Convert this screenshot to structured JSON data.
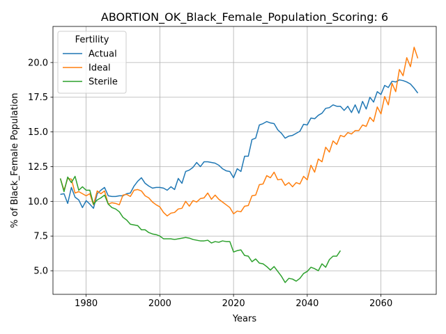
{
  "chart_data": {
    "type": "line",
    "title": "ABORTION_OK_Black_Female_Population_Scoring: 6",
    "xlabel": "Years",
    "ylabel": "% of Black_Female Population",
    "xlim": [
      1971,
      2075
    ],
    "ylim": [
      3.3,
      22.6
    ],
    "xticks": [
      1980,
      2000,
      2020,
      2040,
      2060
    ],
    "yticks": [
      5.0,
      7.5,
      10.0,
      12.5,
      15.0,
      17.5,
      20.0
    ],
    "grid": true,
    "legend": {
      "title": "Fertility",
      "placement": "upper-left"
    },
    "series": [
      {
        "name": "Actual",
        "color": "#1f77b4",
        "x": [
          1973,
          1974,
          1975,
          1976,
          1977,
          1978,
          1979,
          1980,
          1981,
          1982,
          1983,
          1984,
          1985,
          1986,
          1987,
          1988,
          1989,
          1990,
          1991,
          1992,
          1993,
          1994,
          1995,
          1996,
          1997,
          1998,
          1999,
          2000,
          2001,
          2002,
          2003,
          2004,
          2005,
          2006,
          2007,
          2008,
          2009,
          2010,
          2011,
          2012,
          2013,
          2014,
          2015,
          2016,
          2017,
          2018,
          2019,
          2020,
          2021,
          2022,
          2023,
          2024,
          2025,
          2026,
          2027,
          2028,
          2029,
          2030,
          2031,
          2032,
          2033,
          2034,
          2035,
          2036,
          2037,
          2038,
          2039,
          2040,
          2041,
          2042,
          2043,
          2044,
          2045,
          2046,
          2047,
          2048,
          2049,
          2050,
          2051,
          2052,
          2053,
          2054,
          2055,
          2056,
          2057,
          2058,
          2059,
          2060,
          2061,
          2062,
          2063,
          2064,
          2065,
          2066,
          2067,
          2068,
          2069,
          2070
        ],
        "y": [
          10.5,
          10.55,
          9.85,
          11.0,
          10.3,
          10.1,
          9.55,
          10.05,
          9.8,
          9.5,
          10.55,
          10.8,
          11.0,
          10.4,
          10.35,
          10.35,
          10.4,
          10.4,
          10.55,
          10.6,
          11.1,
          11.45,
          11.7,
          11.3,
          11.1,
          10.95,
          11.0,
          11.0,
          10.95,
          10.8,
          11.05,
          10.85,
          11.65,
          11.3,
          12.15,
          12.25,
          12.45,
          12.8,
          12.5,
          12.85,
          12.85,
          12.8,
          12.75,
          12.6,
          12.35,
          12.2,
          12.15,
          11.7,
          12.35,
          12.15,
          13.25,
          13.25,
          14.45,
          14.55,
          15.5,
          15.6,
          15.75,
          15.65,
          15.6,
          15.15,
          14.9,
          14.55,
          14.7,
          14.75,
          14.9,
          15.05,
          15.55,
          15.5,
          16.0,
          15.95,
          16.2,
          16.35,
          16.7,
          16.75,
          16.95,
          16.85,
          16.85,
          16.55,
          16.85,
          16.4,
          16.95,
          16.35,
          17.2,
          16.65,
          17.5,
          17.15,
          17.9,
          17.7,
          18.35,
          18.2,
          18.65,
          18.6,
          18.75,
          18.7,
          18.6,
          18.45,
          18.15,
          17.8
        ]
      },
      {
        "name": "Ideal",
        "color": "#ff7f0e",
        "x": [
          1973,
          1974,
          1975,
          1976,
          1977,
          1978,
          1979,
          1980,
          1981,
          1982,
          1983,
          1984,
          1985,
          1986,
          1987,
          1988,
          1989,
          1990,
          1991,
          1992,
          1993,
          1994,
          1995,
          1996,
          1997,
          1998,
          1999,
          2000,
          2001,
          2002,
          2003,
          2004,
          2005,
          2006,
          2007,
          2008,
          2009,
          2010,
          2011,
          2012,
          2013,
          2014,
          2015,
          2016,
          2017,
          2018,
          2019,
          2020,
          2021,
          2022,
          2023,
          2024,
          2025,
          2026,
          2027,
          2028,
          2029,
          2030,
          2031,
          2032,
          2033,
          2034,
          2035,
          2036,
          2037,
          2038,
          2039,
          2040,
          2041,
          2042,
          2043,
          2044,
          2045,
          2046,
          2047,
          2048,
          2049,
          2050,
          2051,
          2052,
          2053,
          2054,
          2055,
          2056,
          2057,
          2058,
          2059,
          2060,
          2061,
          2062,
          2063,
          2064,
          2065,
          2066,
          2067,
          2068,
          2069,
          2070
        ],
        "y": [
          11.65,
          10.8,
          11.65,
          11.6,
          10.6,
          10.7,
          10.55,
          10.4,
          10.55,
          9.75,
          10.75,
          10.55,
          10.75,
          9.8,
          9.9,
          9.85,
          9.75,
          10.45,
          10.5,
          10.35,
          10.8,
          10.85,
          10.75,
          10.4,
          10.25,
          9.95,
          9.75,
          9.6,
          9.2,
          8.95,
          9.15,
          9.2,
          9.45,
          9.5,
          10.0,
          9.65,
          10.05,
          9.95,
          10.2,
          10.25,
          10.6,
          10.15,
          10.45,
          10.15,
          9.95,
          9.75,
          9.55,
          9.1,
          9.3,
          9.25,
          9.65,
          9.7,
          10.4,
          10.45,
          11.2,
          11.25,
          11.85,
          11.7,
          12.1,
          11.55,
          11.6,
          11.15,
          11.35,
          11.05,
          11.35,
          11.25,
          11.8,
          11.55,
          12.6,
          12.1,
          13.05,
          12.85,
          13.9,
          13.55,
          14.35,
          14.1,
          14.75,
          14.65,
          14.95,
          14.85,
          15.1,
          15.1,
          15.5,
          15.4,
          16.05,
          15.75,
          16.8,
          16.3,
          17.55,
          16.95,
          18.5,
          17.9,
          19.5,
          19.05,
          20.35,
          19.7,
          21.1,
          20.3
        ]
      },
      {
        "name": "Sterile",
        "color": "#2ca02c",
        "x": [
          1973,
          1974,
          1975,
          1976,
          1977,
          1978,
          1979,
          1980,
          1981,
          1982,
          1983,
          1984,
          1985,
          1986,
          1987,
          1988,
          1989,
          1990,
          1991,
          1992,
          1993,
          1994,
          1995,
          1996,
          1997,
          1998,
          1999,
          2000,
          2001,
          2002,
          2003,
          2004,
          2005,
          2006,
          2007,
          2008,
          2009,
          2010,
          2011,
          2012,
          2013,
          2014,
          2015,
          2016,
          2017,
          2018,
          2019,
          2020,
          2021,
          2022,
          2023,
          2024,
          2025,
          2026,
          2027,
          2028,
          2029,
          2030,
          2031,
          2032,
          2033,
          2034,
          2035,
          2036,
          2037,
          2038,
          2039,
          2040,
          2041,
          2042,
          2043,
          2044,
          2045,
          2046,
          2047,
          2048,
          2049
        ],
        "y": [
          11.65,
          10.7,
          11.75,
          11.35,
          11.8,
          10.8,
          11.05,
          10.8,
          10.8,
          9.8,
          10.1,
          10.25,
          10.45,
          9.8,
          9.55,
          9.45,
          9.25,
          8.85,
          8.65,
          8.35,
          8.3,
          8.25,
          7.95,
          7.95,
          7.75,
          7.65,
          7.6,
          7.5,
          7.3,
          7.3,
          7.3,
          7.25,
          7.3,
          7.35,
          7.4,
          7.35,
          7.25,
          7.2,
          7.15,
          7.15,
          7.2,
          7.0,
          7.1,
          7.05,
          7.15,
          7.1,
          7.1,
          6.35,
          6.45,
          6.5,
          6.1,
          6.05,
          5.65,
          5.85,
          5.55,
          5.5,
          5.3,
          5.05,
          5.3,
          4.95,
          4.6,
          4.15,
          4.45,
          4.4,
          4.25,
          4.45,
          4.8,
          4.95,
          5.25,
          5.15,
          5.0,
          5.5,
          5.25,
          5.8,
          6.05,
          6.05,
          6.45
        ]
      }
    ]
  }
}
